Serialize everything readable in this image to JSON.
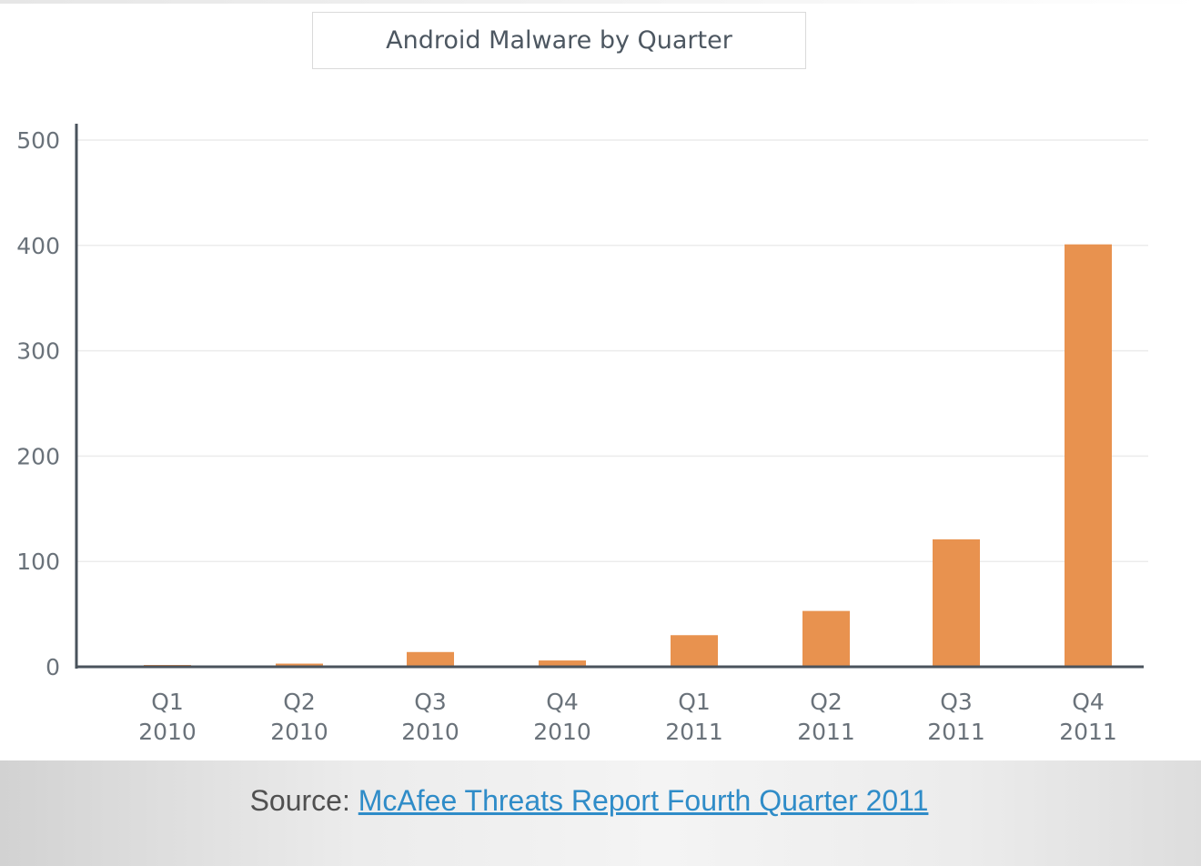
{
  "chart_data": {
    "type": "bar",
    "title": "Android Malware by Quarter",
    "categories": [
      [
        "Q1",
        "2010"
      ],
      [
        "Q2",
        "2010"
      ],
      [
        "Q3",
        "2010"
      ],
      [
        "Q4",
        "2010"
      ],
      [
        "Q1",
        "2011"
      ],
      [
        "Q2",
        "2011"
      ],
      [
        "Q3",
        "2011"
      ],
      [
        "Q4",
        "2011"
      ]
    ],
    "values": [
      1,
      3,
      14,
      6,
      30,
      53,
      121,
      401
    ],
    "xlabel": "",
    "ylabel": "",
    "ylim": [
      0,
      500
    ],
    "yticks": [
      "0",
      "100",
      "200",
      "300",
      "400",
      "500"
    ],
    "grid": true,
    "bar_color": "#e8924f"
  },
  "source": {
    "prefix": "Source: ",
    "link_text": "McAfee Threats Report Fourth Quarter 2011",
    "link_color": "#2f8cc8"
  }
}
